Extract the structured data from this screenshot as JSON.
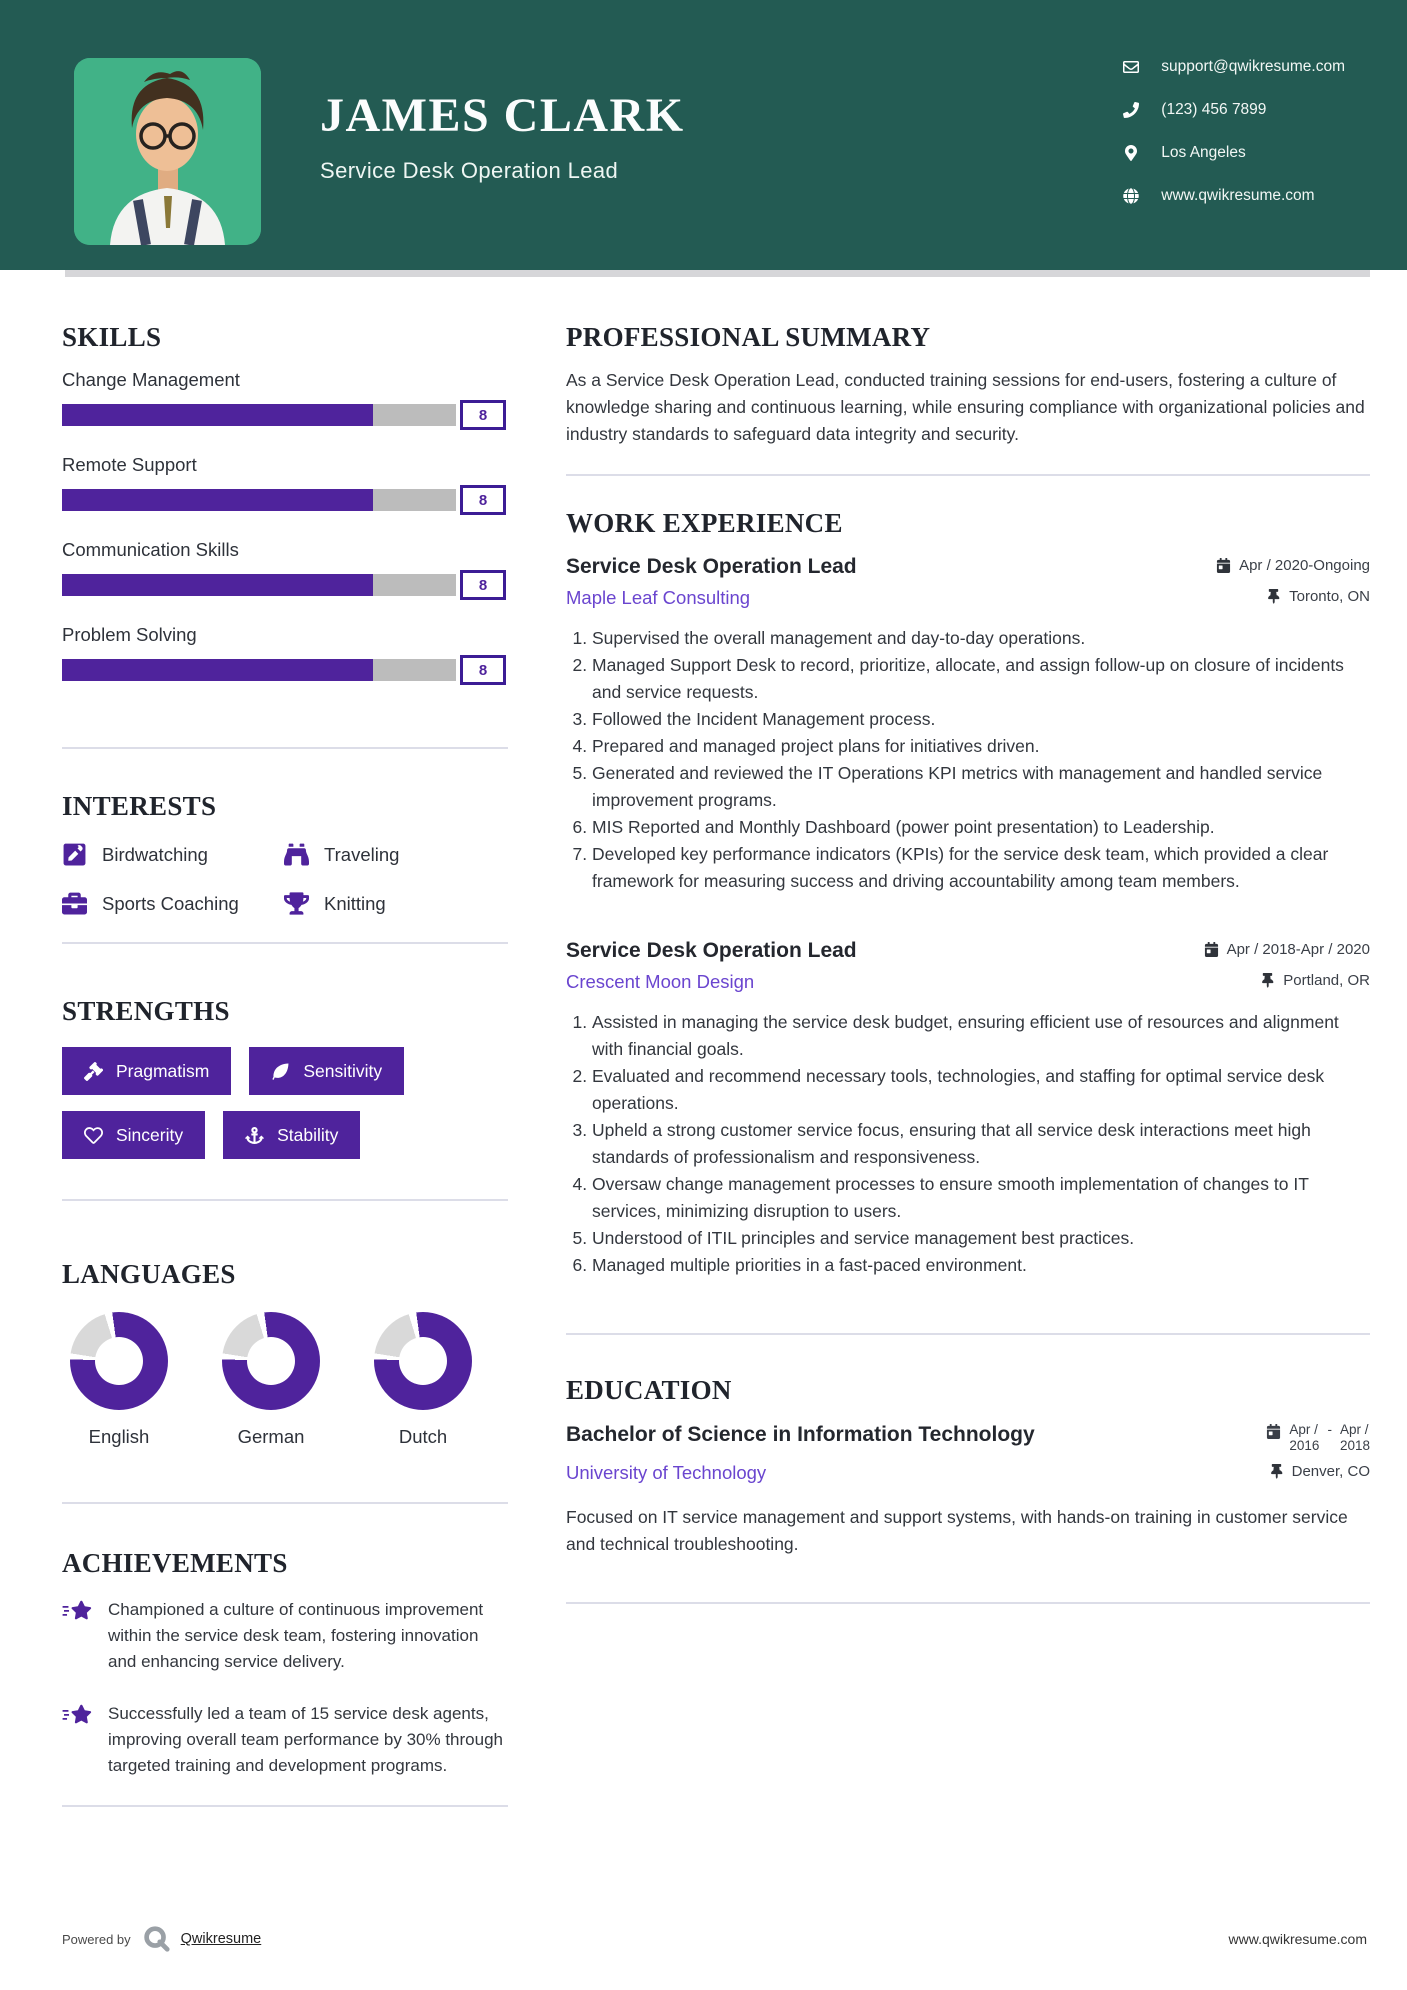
{
  "colors": {
    "header_bg": "#235b53",
    "accent": "#4f239c",
    "accent_dark": "#3c1d95",
    "link": "#6a45cf",
    "photo_bg": "#41b287",
    "track": "#bcbcbc",
    "divider": "#dcdde8",
    "text": "#33373e",
    "heading": "#20242c"
  },
  "header": {
    "name": "JAMES CLARK",
    "title": "Service Desk Operation Lead",
    "contacts": [
      {
        "icon": "envelope-icon",
        "text": "support@qwikresume.com"
      },
      {
        "icon": "phone-icon",
        "text": "(123) 456 7899"
      },
      {
        "icon": "map-marker-icon",
        "text": "Los Angeles"
      },
      {
        "icon": "globe-icon",
        "text": "www.qwikresume.com"
      }
    ]
  },
  "skills": {
    "heading": "SKILLS",
    "items": [
      {
        "label": "Change Management",
        "level": "8",
        "percent": 79
      },
      {
        "label": "Remote Support",
        "level": "8",
        "percent": 79
      },
      {
        "label": "Communication Skills",
        "level": "8",
        "percent": 79
      },
      {
        "label": "Problem Solving",
        "level": "8",
        "percent": 79
      }
    ]
  },
  "interests": {
    "heading": "INTERESTS",
    "items": [
      {
        "icon": "pen-square-icon",
        "label": "Birdwatching"
      },
      {
        "icon": "binoculars-icon",
        "label": "Traveling"
      },
      {
        "icon": "briefcase-icon",
        "label": "Sports Coaching"
      },
      {
        "icon": "trophy-icon",
        "label": "Knitting"
      }
    ]
  },
  "strengths": {
    "heading": "STRENGTHS",
    "items": [
      {
        "icon": "gavel-icon",
        "label": "Pragmatism"
      },
      {
        "icon": "leaf-icon",
        "label": "Sensitivity"
      },
      {
        "icon": "heart-icon",
        "label": "Sincerity"
      },
      {
        "icon": "anchor-icon",
        "label": "Stability"
      }
    ]
  },
  "languages": {
    "heading": "LANGUAGES",
    "items": [
      {
        "label": "English",
        "percent": 80
      },
      {
        "label": "German",
        "percent": 80
      },
      {
        "label": "Dutch",
        "percent": 80
      }
    ]
  },
  "achievements": {
    "heading": "ACHIEVEMENTS",
    "items": [
      {
        "icon": "shooting-star-icon",
        "text": "Championed a culture of continuous improvement within the service desk team, fostering innovation and enhancing service delivery."
      },
      {
        "icon": "shooting-star-icon",
        "text": "Successfully led a team of 15 service desk agents, improving overall team performance by 30% through targeted training and development programs."
      }
    ]
  },
  "summary": {
    "heading": "PROFESSIONAL SUMMARY",
    "text": "As a Service Desk Operation Lead, conducted training sessions for end-users, fostering a culture of knowledge sharing and continuous learning, while ensuring compliance with organizational policies and industry standards to safeguard data integrity and security."
  },
  "experience": {
    "heading": "WORK EXPERIENCE",
    "jobs": [
      {
        "title": "Service Desk Operation Lead",
        "company": "Maple Leaf Consulting",
        "date": "Apr / 2020-Ongoing",
        "location": "Toronto, ON",
        "bullets": [
          "Supervised the overall management and day-to-day operations.",
          "Managed Support Desk to record, prioritize, allocate, and assign follow-up on closure of incidents and service requests.",
          "Followed the Incident Management process.",
          "Prepared and managed project plans for initiatives driven.",
          "Generated and reviewed the IT Operations KPI metrics with management and handled service improvement programs.",
          "MIS Reported and Monthly Dashboard (power point presentation) to Leadership.",
          "Developed key performance indicators (KPIs) for the service desk team, which provided a clear framework for measuring success and driving accountability among team members."
        ]
      },
      {
        "title": "Service Desk Operation Lead",
        "company": "Crescent Moon Design",
        "date": "Apr / 2018-Apr / 2020",
        "location": "Portland, OR",
        "bullets": [
          "Assisted in managing the service desk budget, ensuring efficient use of resources and alignment with financial goals.",
          "Evaluated and recommend necessary tools, technologies, and staffing for optimal service desk operations.",
          "Upheld a strong customer service focus, ensuring that all service desk interactions meet high standards of professionalism and responsiveness.",
          "Oversaw change management processes to ensure smooth implementation of changes to IT services, minimizing disruption to users.",
          "Understood of ITIL principles and service management best practices.",
          "Managed multiple priorities in a fast-paced environment."
        ]
      }
    ]
  },
  "education": {
    "heading": "EDUCATION",
    "degree": "Bachelor of Science in Information Technology",
    "date": {
      "from_line1": "Apr /",
      "from_line2": "2016",
      "separator": "-",
      "to_line1": "Apr /",
      "to_line2": "2018"
    },
    "university": "University of Technology",
    "location": "Denver, CO",
    "description": "Focused on IT service management and support systems, with hands-on training in customer service and technical troubleshooting."
  },
  "footer": {
    "powered_by": "Powered by",
    "brand": "Qwikresume",
    "url": "www.qwikresume.com"
  }
}
